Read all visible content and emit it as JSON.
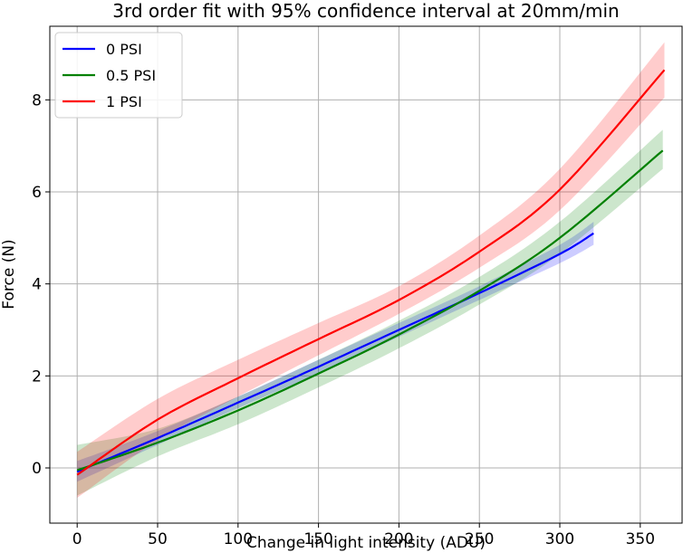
{
  "chart_data": {
    "type": "line",
    "title": "3rd order fit with 95% confidence interval at 20mm/min",
    "xlabel": "Change in light intensity (ADU)",
    "ylabel": "Force (N)",
    "xlim": [
      -17,
      376
    ],
    "ylim": [
      -1.2,
      9.6
    ],
    "xticks": [
      0,
      50,
      100,
      150,
      200,
      250,
      300,
      350
    ],
    "yticks": [
      0,
      2,
      4,
      6,
      8
    ],
    "grid": true,
    "legend_position": "top-left",
    "series": [
      {
        "name": "0 PSI",
        "color": "#0000ff",
        "x": [
          0,
          50,
          100,
          150,
          200,
          250,
          300,
          321
        ],
        "y": [
          -0.08,
          0.65,
          1.42,
          2.2,
          3.0,
          3.8,
          4.65,
          5.1
        ],
        "lower": [
          -0.3,
          0.5,
          1.3,
          2.05,
          2.85,
          3.65,
          4.45,
          4.85
        ],
        "upper": [
          0.15,
          0.8,
          1.55,
          2.35,
          3.15,
          3.95,
          4.85,
          5.35
        ]
      },
      {
        "name": "0.5 PSI",
        "color": "#008000",
        "x": [
          0,
          50,
          100,
          150,
          200,
          250,
          300,
          364
        ],
        "y": [
          -0.05,
          0.55,
          1.25,
          2.05,
          2.9,
          3.85,
          5.0,
          6.9
        ],
        "lower": [
          -0.6,
          0.25,
          0.95,
          1.75,
          2.6,
          3.55,
          4.65,
          6.5
        ],
        "upper": [
          0.5,
          0.85,
          1.55,
          2.35,
          3.2,
          4.15,
          5.35,
          7.35
        ]
      },
      {
        "name": "1 PSI",
        "color": "#ff0000",
        "x": [
          0,
          50,
          100,
          150,
          200,
          250,
          300,
          365
        ],
        "y": [
          -0.15,
          1.05,
          1.95,
          2.8,
          3.65,
          4.7,
          6.05,
          8.65
        ],
        "lower": [
          -0.65,
          0.6,
          1.55,
          2.45,
          3.35,
          4.35,
          5.6,
          8.05
        ],
        "upper": [
          0.35,
          1.5,
          2.35,
          3.15,
          3.95,
          5.05,
          6.5,
          9.25
        ]
      }
    ]
  }
}
